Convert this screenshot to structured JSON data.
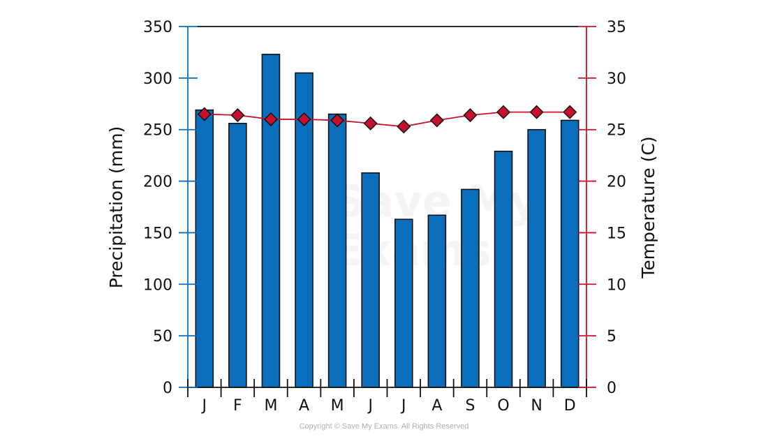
{
  "chart_data": {
    "type": "bar",
    "categories": [
      "J",
      "F",
      "M",
      "A",
      "M",
      "J",
      "J",
      "A",
      "S",
      "O",
      "N",
      "D"
    ],
    "series": [
      {
        "type": "bar",
        "axis": "left",
        "color": "#0a6ebd",
        "values": [
          269,
          256,
          323,
          305,
          265,
          208,
          163,
          167,
          192,
          229,
          250,
          259
        ]
      },
      {
        "type": "line",
        "axis": "right",
        "color": "#c8102e",
        "marker": "diamond",
        "values": [
          26.5,
          26.4,
          26.0,
          26.0,
          25.9,
          25.6,
          25.3,
          25.9,
          26.4,
          26.7,
          26.7,
          26.7
        ]
      }
    ],
    "ylabel": "Precipitation (mm)",
    "ylim": [
      0,
      350
    ],
    "yticks": [
      0,
      50,
      100,
      150,
      200,
      250,
      300,
      350
    ],
    "y2label": "Temperature (C)",
    "y2lim": [
      0,
      35
    ],
    "y2ticks": [
      0,
      5,
      10,
      15,
      20,
      25,
      30,
      35
    ],
    "left_axis_color": "#0a6ebd",
    "right_axis_color": "#c8102e",
    "grid": false
  },
  "watermark": [
    "Save My",
    "Exams"
  ],
  "copyright": "Copyright © Save My Exams. All Rights Reserved"
}
